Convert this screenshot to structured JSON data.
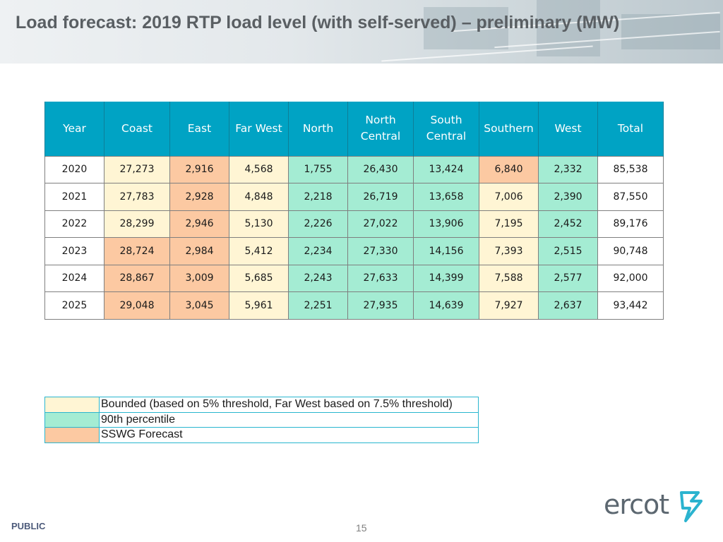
{
  "slide": {
    "title": "Load forecast: 2019 RTP load level (with self-served) – preliminary (MW)",
    "footer_label": "PUBLIC",
    "page_number": "15",
    "logo_text": "ercot"
  },
  "colors": {
    "header_blue": "#00a3c4",
    "bounded": "#fff5d4",
    "percentile_90th": "#a4ecd3",
    "sswg_forecast": "#fcc9a2"
  },
  "table": {
    "headers": [
      "Year",
      "Coast",
      "East",
      "Far West",
      "North",
      "North Central",
      "South Central",
      "Southern",
      "West",
      "Total"
    ],
    "rows": [
      {
        "values": [
          "2020",
          "27,273",
          "2,916",
          "4,568",
          "1,755",
          "26,430",
          "13,424",
          "6,840",
          "2,332",
          "85,538"
        ],
        "fills": [
          "none",
          "bounded",
          "sswg_forecast",
          "bounded",
          "percentile_90th",
          "percentile_90th",
          "percentile_90th",
          "sswg_forecast",
          "percentile_90th",
          "none"
        ]
      },
      {
        "values": [
          "2021",
          "27,783",
          "2,928",
          "4,848",
          "2,218",
          "26,719",
          "13,658",
          "7,006",
          "2,390",
          "87,550"
        ],
        "fills": [
          "none",
          "bounded",
          "sswg_forecast",
          "bounded",
          "percentile_90th",
          "percentile_90th",
          "percentile_90th",
          "bounded",
          "percentile_90th",
          "none"
        ]
      },
      {
        "values": [
          "2022",
          "28,299",
          "2,946",
          "5,130",
          "2,226",
          "27,022",
          "13,906",
          "7,195",
          "2,452",
          "89,176"
        ],
        "fills": [
          "none",
          "bounded",
          "sswg_forecast",
          "bounded",
          "percentile_90th",
          "percentile_90th",
          "percentile_90th",
          "bounded",
          "percentile_90th",
          "none"
        ]
      },
      {
        "values": [
          "2023",
          "28,724",
          "2,984",
          "5,412",
          "2,234",
          "27,330",
          "14,156",
          "7,393",
          "2,515",
          "90,748"
        ],
        "fills": [
          "none",
          "sswg_forecast",
          "sswg_forecast",
          "bounded",
          "percentile_90th",
          "percentile_90th",
          "percentile_90th",
          "bounded",
          "percentile_90th",
          "none"
        ]
      },
      {
        "values": [
          "2024",
          "28,867",
          "3,009",
          "5,685",
          "2,243",
          "27,633",
          "14,399",
          "7,588",
          "2,577",
          "92,000"
        ],
        "fills": [
          "none",
          "sswg_forecast",
          "sswg_forecast",
          "bounded",
          "percentile_90th",
          "percentile_90th",
          "percentile_90th",
          "bounded",
          "percentile_90th",
          "none"
        ]
      },
      {
        "values": [
          "2025",
          "29,048",
          "3,045",
          "5,961",
          "2,251",
          "27,935",
          "14,639",
          "7,927",
          "2,637",
          "93,442"
        ],
        "fills": [
          "none",
          "sswg_forecast",
          "sswg_forecast",
          "bounded",
          "percentile_90th",
          "percentile_90th",
          "percentile_90th",
          "bounded",
          "percentile_90th",
          "none"
        ]
      }
    ]
  },
  "legend": [
    {
      "fill": "bounded",
      "label": "Bounded (based on 5% threshold, Far West based on 7.5% threshold)"
    },
    {
      "fill": "percentile_90th",
      "label": "90th percentile"
    },
    {
      "fill": "sswg_forecast",
      "label": "SSWG Forecast"
    }
  ]
}
